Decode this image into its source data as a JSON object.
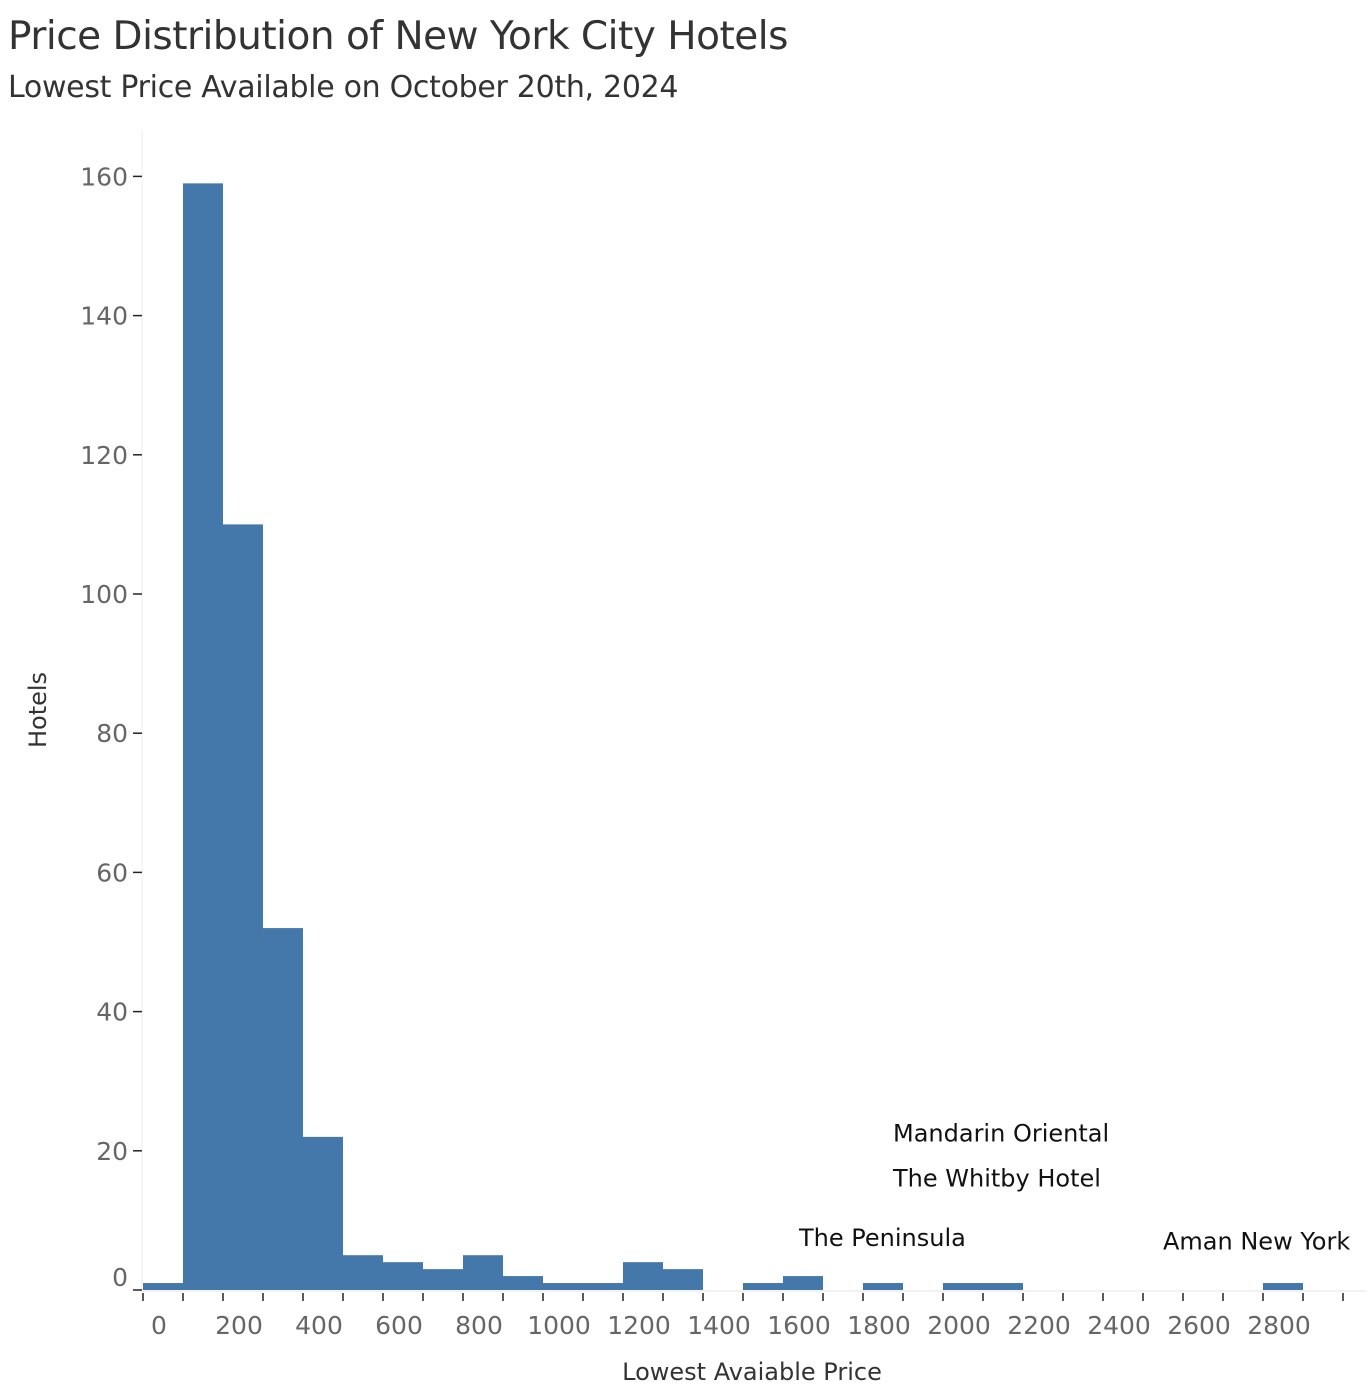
{
  "chart_data": {
    "type": "bar",
    "title": "Price Distribution of New York City Hotels",
    "subtitle": "Lowest Price Available on October 20th, 2024",
    "xlabel": "Lowest Avaiable Price",
    "ylabel": "Hotels",
    "bin_width": 100,
    "bins": [
      {
        "start": 0,
        "count": 1
      },
      {
        "start": 100,
        "count": 159
      },
      {
        "start": 200,
        "count": 110
      },
      {
        "start": 300,
        "count": 52
      },
      {
        "start": 400,
        "count": 22
      },
      {
        "start": 500,
        "count": 5
      },
      {
        "start": 600,
        "count": 4
      },
      {
        "start": 700,
        "count": 3
      },
      {
        "start": 800,
        "count": 5
      },
      {
        "start": 900,
        "count": 2
      },
      {
        "start": 1000,
        "count": 1
      },
      {
        "start": 1100,
        "count": 1
      },
      {
        "start": 1200,
        "count": 4
      },
      {
        "start": 1300,
        "count": 3
      },
      {
        "start": 1400,
        "count": 0
      },
      {
        "start": 1500,
        "count": 1
      },
      {
        "start": 1600,
        "count": 2
      },
      {
        "start": 1700,
        "count": 0
      },
      {
        "start": 1800,
        "count": 1
      },
      {
        "start": 1900,
        "count": 0
      },
      {
        "start": 2000,
        "count": 1
      },
      {
        "start": 2100,
        "count": 1
      },
      {
        "start": 2200,
        "count": 0
      },
      {
        "start": 2300,
        "count": 0
      },
      {
        "start": 2400,
        "count": 0
      },
      {
        "start": 2500,
        "count": 0
      },
      {
        "start": 2600,
        "count": 0
      },
      {
        "start": 2700,
        "count": 0
      },
      {
        "start": 2800,
        "count": 1
      }
    ],
    "x_ticks": [
      "0",
      "200",
      "400",
      "600",
      "800",
      "1000",
      "1200",
      "1400",
      "1600",
      "1800",
      "2000",
      "2200",
      "2400",
      "2600",
      "2800"
    ],
    "y_ticks": [
      "0",
      "20",
      "40",
      "60",
      "80",
      "100",
      "120",
      "140",
      "160"
    ],
    "xlim": [
      0,
      3000
    ],
    "ylim": [
      0,
      165
    ],
    "grid": false,
    "legend": "none",
    "bar_color": "#4477aa",
    "annotations": [
      {
        "text": "Mandarin Oriental",
        "x": 1875,
        "y": 22.5
      },
      {
        "text": "The Whitby Hotel",
        "x": 1875,
        "y": 16
      },
      {
        "text": "The Peninsula",
        "x": 1640,
        "y": 7.5
      },
      {
        "text": "Aman New York",
        "x": 2550,
        "y": 7
      }
    ]
  }
}
